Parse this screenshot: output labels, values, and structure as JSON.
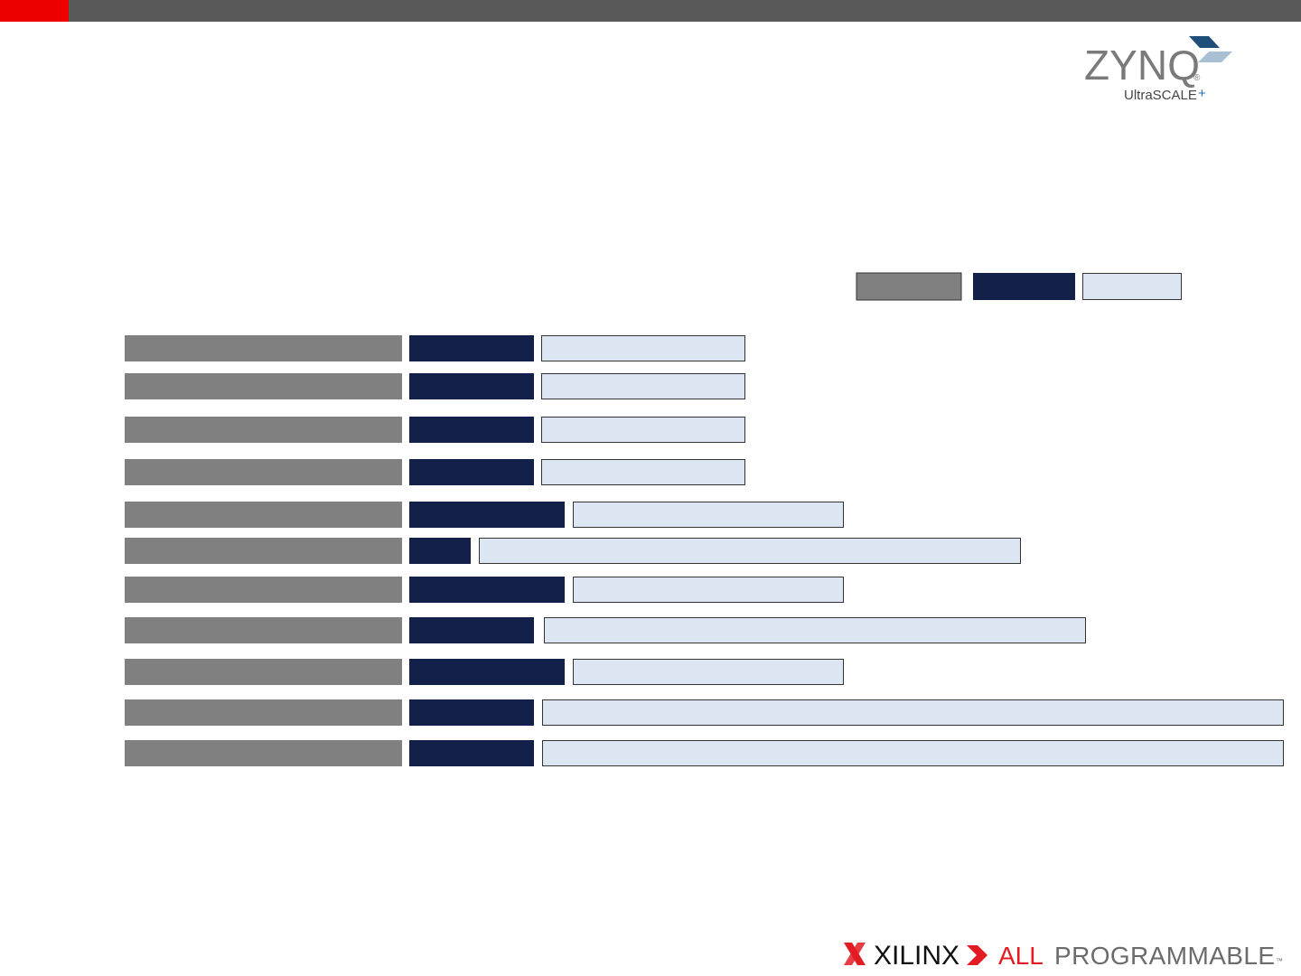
{
  "logo": {
    "product": "ZYNQ",
    "registered": "®",
    "family": "UltraSCALE",
    "family_plus": "+"
  },
  "footer": {
    "brand": "XILINX",
    "tagline_1": "ALL",
    "tagline_2": "PROGRAMMABLE",
    "trademark": "™"
  }
}
